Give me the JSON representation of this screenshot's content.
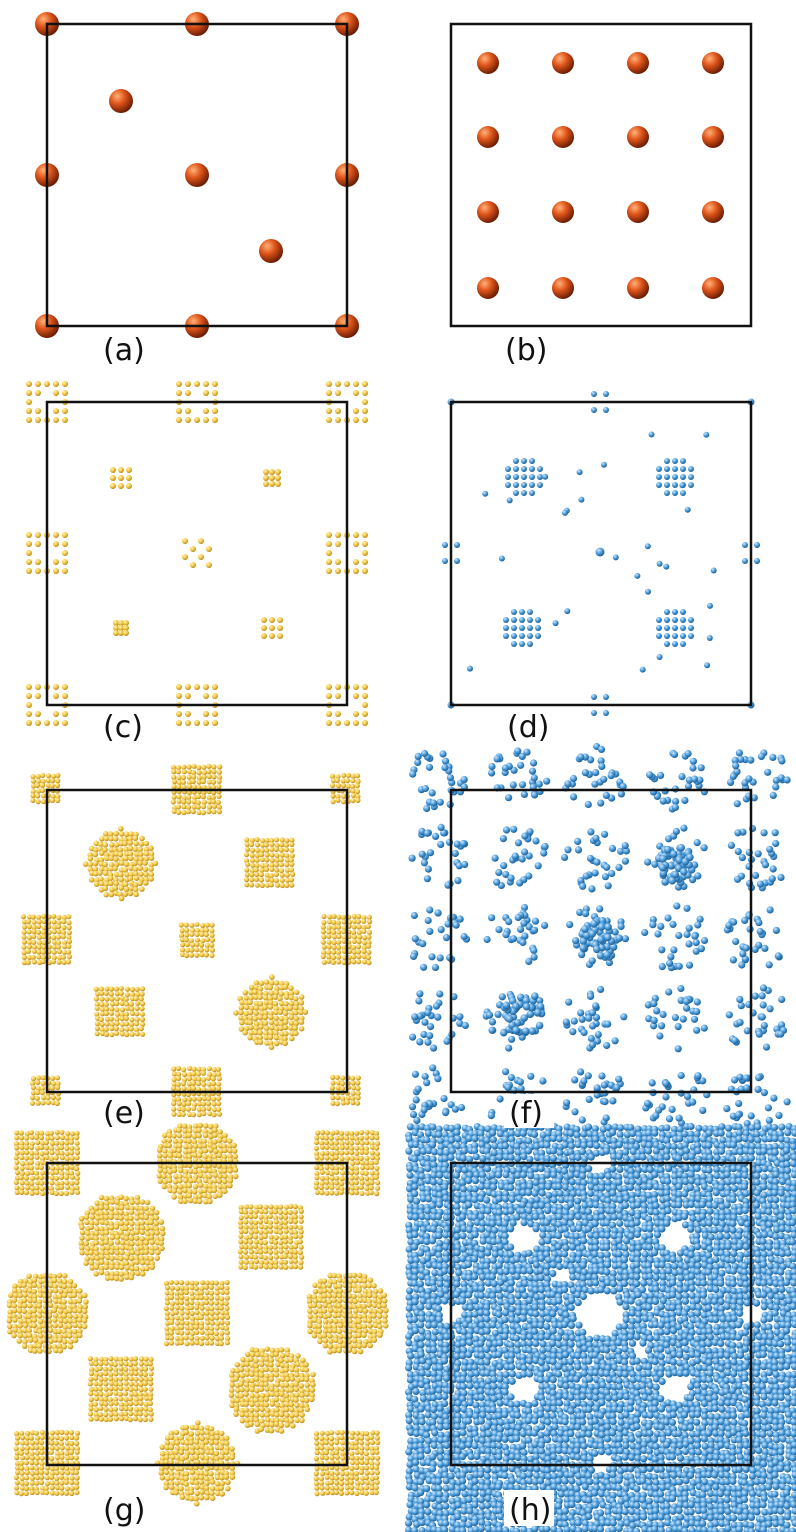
{
  "panels": [
    {
      "id": "a",
      "label": "(a)",
      "structure": "sparse-spheres",
      "color": "#d24a14"
    },
    {
      "id": "b",
      "label": "(b)",
      "structure": "square-lattice-4x4",
      "color": "#d24a14"
    },
    {
      "id": "c",
      "label": "(c)",
      "structure": "small-clusters",
      "color": "#f2c84b"
    },
    {
      "id": "d",
      "label": "(d)",
      "structure": "small-clusters",
      "color": "#4a9ad8"
    },
    {
      "id": "e",
      "label": "(e)",
      "structure": "cube-and-sphere-clusters",
      "color": "#f2c84b"
    },
    {
      "id": "f",
      "label": "(f)",
      "structure": "connected-clusters",
      "color": "#4a9ad8"
    },
    {
      "id": "g",
      "label": "(g)",
      "structure": "large-cube-and-sphere-clusters",
      "color": "#f2c84b"
    },
    {
      "id": "h",
      "label": "(h)",
      "structure": "dense-network",
      "color": "#4a9ad8"
    }
  ],
  "colors": {
    "frame": "#111111",
    "orange": "#d24a14",
    "yellow": "#f2c84b",
    "blue": "#4a9ad8"
  }
}
